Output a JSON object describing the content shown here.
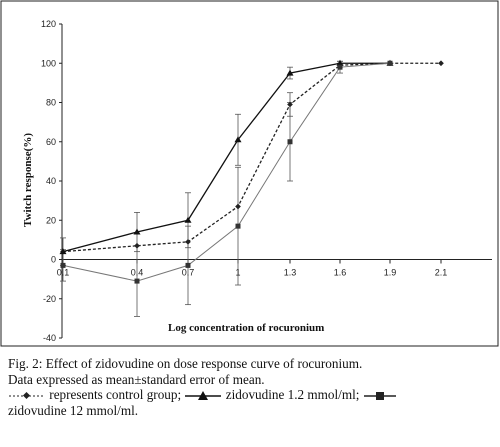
{
  "chart_data": {
    "type": "line",
    "title": "",
    "xlabel": "Log concentration of rocuronium",
    "ylabel": "Twitch response(%)",
    "x_ticks": [
      "0.1",
      "0.4",
      "0.7",
      "1",
      "1.3",
      "1.6",
      "1.9",
      "2.1"
    ],
    "y_ticks": [
      "120",
      "100",
      "80",
      "60",
      "40",
      "20",
      "0",
      "-20",
      "-40"
    ],
    "ylim": [
      -40,
      120
    ],
    "grid": false,
    "series": [
      {
        "name": "control group",
        "style": "dashed-diamond",
        "color": "#222222",
        "x": [
          "0.1",
          "0.4",
          "0.7",
          "1",
          "1.3",
          "1.6",
          "1.9",
          "2.1"
        ],
        "values": [
          4,
          7,
          9,
          27,
          79,
          99,
          100,
          100
        ],
        "error": [
          0,
          0,
          0,
          0,
          6,
          1,
          0,
          0
        ]
      },
      {
        "name": "zidovudine 1.2 mmol/ml",
        "style": "solid-triangle",
        "color": "#111111",
        "x": [
          "0.1",
          "0.4",
          "0.7",
          "1",
          "1.3",
          "1.6",
          "1.9"
        ],
        "values": [
          4,
          14,
          20,
          61,
          95,
          100,
          100
        ],
        "error": [
          7,
          10,
          14,
          13,
          3,
          1,
          0
        ]
      },
      {
        "name": "zidovudine 12 mmol/ml",
        "style": "solid-square",
        "color": "#777777",
        "x": [
          "0.1",
          "0.4",
          "0.7",
          "1",
          "1.3",
          "1.6",
          "1.9"
        ],
        "values": [
          -3,
          -11,
          -3,
          17,
          60,
          98,
          100
        ],
        "error": [
          8,
          18,
          20,
          30,
          20,
          3,
          0
        ]
      }
    ]
  },
  "caption": {
    "line1": "Fig. 2: Effect of zidovudine on dose response curve of rocuronium.",
    "line2": "Data expressed as mean±standard error of mean.",
    "line3a": "represents control group;",
    "line3b": "zidovudine 1.2 mmol/ml;",
    "line4": "zidovudine 12 mmol/ml."
  }
}
